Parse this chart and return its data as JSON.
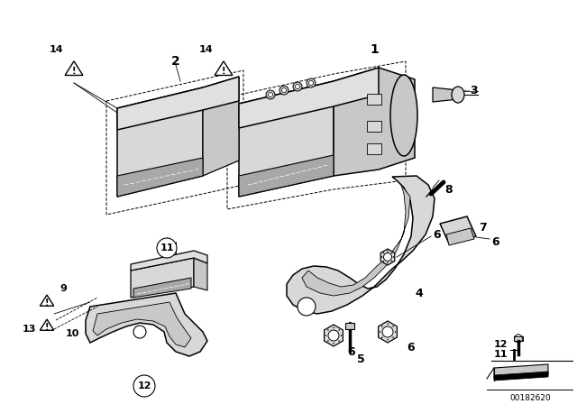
{
  "background_color": "#ffffff",
  "catalog_number": "00182620",
  "fig_width": 6.4,
  "fig_height": 4.48,
  "dpi": 100,
  "lw_main": 1.1,
  "lw_thin": 0.7,
  "gray_light": "#e0e0e0",
  "gray_mid": "#c8c8c8",
  "gray_dark": "#a8a8a8",
  "gray_fill": "#d8d8d8"
}
